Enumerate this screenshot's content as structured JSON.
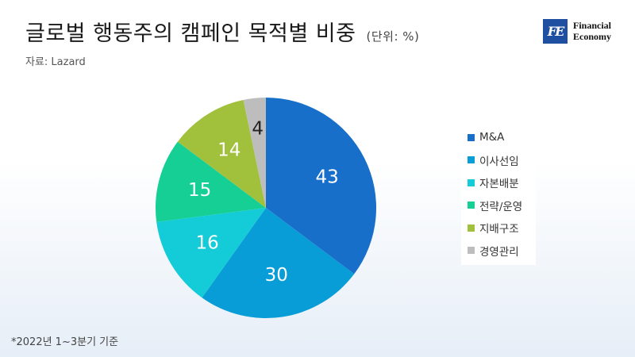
{
  "header": {
    "title": "글로벌 행동주의 캠페인 목적별 비중",
    "unit": "(단위: %)",
    "source": "자료: Lazard"
  },
  "logo": {
    "mark": "FE",
    "line1": "Financial",
    "line2": "Economy"
  },
  "footnote": "*2022년 1~3분기 기준",
  "chart_data": {
    "type": "pie",
    "title": "글로벌 행동주의 캠페인 목적별 비중",
    "unit": "%",
    "categories": [
      "M&A",
      "이사선임",
      "자본배분",
      "전략/운영",
      "지배구조",
      "경영관리"
    ],
    "values": [
      43,
      30,
      16,
      15,
      14,
      4
    ],
    "colors": [
      "#176fc9",
      "#089dd6",
      "#14ccd8",
      "#15cf95",
      "#a1c13c",
      "#bdbdbd"
    ],
    "label_colors": [
      "#ffffff",
      "#ffffff",
      "#ffffff",
      "#ffffff",
      "#ffffff",
      "#222222"
    ],
    "start": "12 o'clock",
    "direction": "clockwise",
    "legend_position": "right"
  }
}
